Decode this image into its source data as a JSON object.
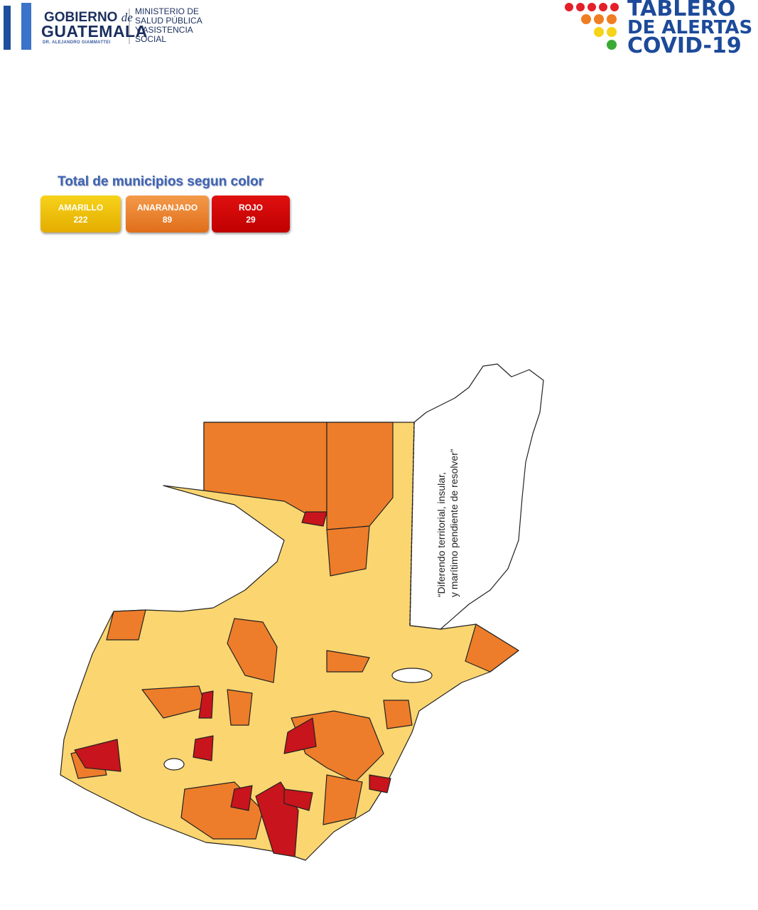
{
  "header": {
    "government": {
      "line1": "GOBIERNO",
      "connector": "de",
      "line2": "GUATEMALA",
      "president": "DR. ALEJANDRO GIAMMATTEI"
    },
    "ministry": [
      "MINISTERIO DE",
      "SALUD PÚBLICA",
      "Y ASISTENCIA",
      "SOCIAL"
    ],
    "dashboard": [
      "TABLERO",
      "DE ALERTAS",
      "COVID-19"
    ]
  },
  "summary": {
    "title": "Total de municipios segun color",
    "items": [
      {
        "label": "AMARILLO",
        "count": 222
      },
      {
        "label": "ANARANJADO",
        "count": 89
      },
      {
        "label": "ROJO",
        "count": 29
      }
    ]
  },
  "map": {
    "annotation": [
      "“Diferendo territorial, insular,",
      "y marítimo pendiente de resolver”"
    ]
  }
}
